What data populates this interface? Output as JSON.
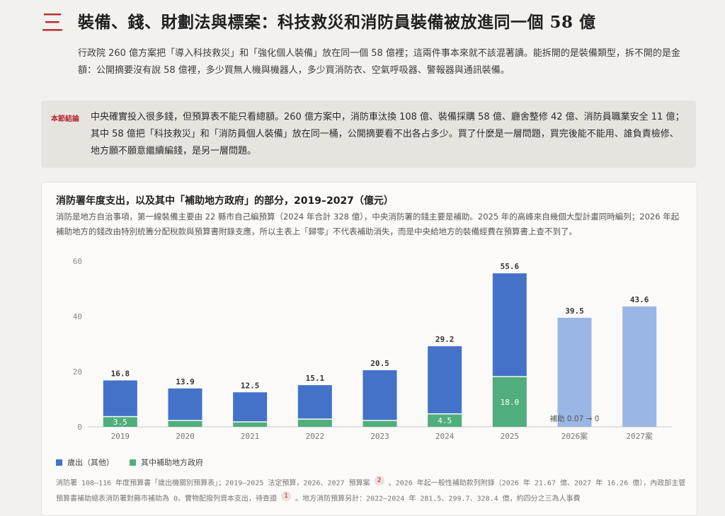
{
  "section": {
    "number": "三",
    "title": "裝備、錢、財劃法與標案：科技救災和消防員裝備被放進同一個 58 億",
    "intro": "行政院 260 億方案把「導入科技救災」和「強化個人裝備」放在同一個 58 億裡；這兩件事本來就不該混著讀。能拆開的是裝備類型，拆不開的是金額：公開摘要沒有說 58 億裡，多少買無人機與機器人，多少買消防衣、空氣呼吸器、警報器與通訊裝備。"
  },
  "summary": {
    "tag": "本節結論",
    "text": "中央確實投入很多錢，但預算表不能只看總額。260 億方案中，消防車汰換 108 億、裝備採購 58 億、廳舍整修 42 億、消防員職業安全 11 億；其中 58 億把「科技救災」和「消防員個人裝備」放在同一桶，公開摘要看不出各占多少。買了什麼是一層問題，買完後能不能用、誰負責檢修、地方願不願意繼續編錢，是另一層問題。"
  },
  "chart": {
    "title": "消防署年度支出，以及其中「補助地方政府」的部分，2019–2027（億元）",
    "subtitle": "消防是地方自治事項，第一線裝備主要由 22 縣市自己編預算（2024 年合計 328 億），中央消防署的錢主要是補助。2025 年的高峰來自幾個大型計畫同時編列；2026 年起補助地方的錢改由特別統籌分配稅款與預算書附錄支應，所以主表上「歸零」不代表補助消失，而是中央給地方的裝備經費在預算書上查不到了。",
    "annotation": "補助 0.07 → 0",
    "source_pre": "消防署 108–116 年度預算書「歲出機關別預算表」；2019–2025 法定預算，2026、2027 預算案",
    "fn2": "2",
    "source_mid": "。2026 年起一般性補助款列附錄（2026 年 21.67 億、2027 年 16.26 億），內政部主管預算書補助總表消防署對縣市補助為 0、實物配撥列資本支出，待查證",
    "fn1": "1",
    "source_post": "。地方消防預算另計：2022–2024 年 281.5、299.7、328.4 億，約四分之三為人事費"
  },
  "chart_data": {
    "type": "bar",
    "categories": [
      "2019",
      "2020",
      "2021",
      "2022",
      "2023",
      "2024",
      "2025",
      "2026案",
      "2027案"
    ],
    "series": [
      {
        "name": "歲出（其他）",
        "values": [
          13.3,
          11.8,
          10.9,
          12.5,
          18.4,
          24.7,
          37.6,
          39.43,
          43.6
        ]
      },
      {
        "name": "其中補助地方政府",
        "values": [
          3.5,
          2.1,
          1.6,
          2.6,
          2.1,
          4.5,
          18.0,
          0.07,
          0
        ]
      }
    ],
    "totals": [
      16.8,
      13.9,
      12.5,
      15.1,
      20.5,
      29.2,
      55.6,
      39.5,
      43.6
    ],
    "total_labels": [
      "16.8",
      "13.9",
      "12.5",
      "15.1",
      "20.5",
      "29.2",
      "55.6",
      "39.5",
      "43.6"
    ],
    "sub_labels": [
      "3.5",
      "",
      "",
      "",
      "",
      "4.5",
      "18.0",
      "",
      ""
    ],
    "projected": [
      false,
      false,
      false,
      false,
      false,
      false,
      false,
      true,
      true
    ],
    "yticks": [
      0,
      20,
      40,
      60
    ],
    "ylim": [
      0,
      60
    ],
    "colors": {
      "other": "#4472c8",
      "subsidy": "#4fae7b",
      "projected": "#9ab6e4"
    },
    "grid": false,
    "stacked": true,
    "legend": "bottom-left"
  }
}
